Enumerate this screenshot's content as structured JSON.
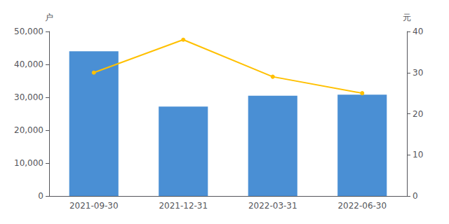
{
  "chart_data": {
    "type": "bar",
    "categories": [
      "2021-09-30",
      "2021-12-31",
      "2022-03-31",
      "2022-06-30"
    ],
    "series": [
      {
        "type": "bar",
        "color": "#4A8FD4",
        "values": [
          44000,
          27200,
          30500,
          30800
        ]
      },
      {
        "type": "line",
        "color": "#FFC000",
        "marker": "circle",
        "axis": "y2",
        "values": [
          30,
          38,
          29,
          25
        ]
      }
    ],
    "ylabel": "户",
    "y2label": "元",
    "ylim": [
      0,
      50000
    ],
    "yticks": [
      0,
      {
        "value": 10000,
        "label": "10,000"
      },
      {
        "value": 20000,
        "label": "20,000"
      },
      {
        "value": 30000,
        "label": "30,000"
      },
      {
        "value": 40000,
        "label": "40,000"
      },
      {
        "value": 50000,
        "label": "50,000"
      }
    ],
    "y2lim": [
      0,
      40
    ],
    "y2ticks": [
      0,
      10,
      20,
      30,
      40
    ],
    "grid": false
  }
}
